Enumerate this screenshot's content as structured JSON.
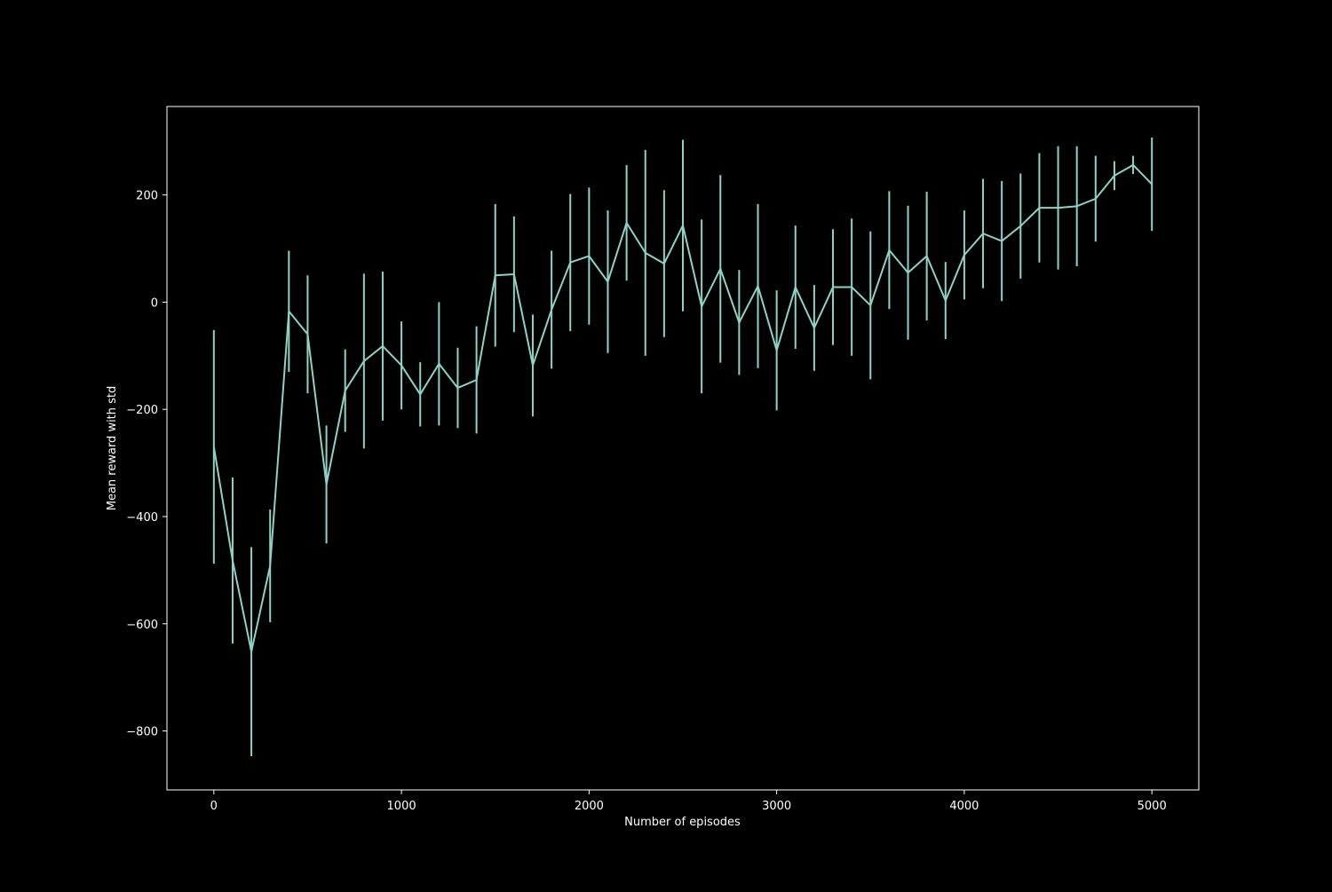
{
  "chart_data": {
    "type": "line",
    "title": "",
    "xlabel": "Number of episodes",
    "ylabel": "Mean reward with std",
    "xlim": [
      -250,
      5250
    ],
    "ylim": [
      -910,
      365
    ],
    "xticks": [
      0,
      1000,
      2000,
      3000,
      4000,
      5000
    ],
    "yticks": [
      -800,
      -600,
      -400,
      -200,
      0,
      200
    ],
    "xtick_labels": [
      "0",
      "1000",
      "2000",
      "3000",
      "4000",
      "5000"
    ],
    "ytick_labels": [
      "−800",
      "−600",
      "−400",
      "−200",
      "0",
      "200"
    ],
    "grid": false,
    "legend": "none",
    "background": "#000000",
    "line_color": "#8dd3c7",
    "axis_color": "#ffffff",
    "x": [
      0,
      100,
      200,
      300,
      400,
      500,
      600,
      700,
      800,
      900,
      1000,
      1100,
      1200,
      1300,
      1400,
      1500,
      1600,
      1700,
      1800,
      1900,
      2000,
      2100,
      2200,
      2300,
      2400,
      2500,
      2600,
      2700,
      2800,
      2900,
      3000,
      3100,
      3200,
      3300,
      3400,
      3500,
      3600,
      3700,
      3800,
      3900,
      4000,
      4100,
      4200,
      4300,
      4400,
      4500,
      4600,
      4700,
      4800,
      4900,
      5000
    ],
    "series": [
      {
        "y": [
          -270,
          -482,
          -652,
          -492,
          -17,
          -60,
          -340,
          -165,
          -110,
          -82,
          -118,
          -172,
          -115,
          -160,
          -145,
          50,
          52,
          -118,
          -14,
          74,
          86,
          38,
          148,
          92,
          72,
          143,
          -8,
          62,
          -38,
          30,
          -90,
          28,
          -48,
          28,
          28,
          -6,
          97,
          55,
          86,
          3,
          88,
          128,
          114,
          142,
          176,
          176,
          179,
          193,
          236,
          256,
          220
        ],
        "error": [
          218,
          155,
          195,
          105,
          113,
          110,
          110,
          77,
          163,
          139,
          82,
          60,
          115,
          75,
          100,
          133,
          108,
          95,
          110,
          128,
          128,
          133,
          108,
          192,
          137,
          160,
          162,
          175,
          98,
          153,
          112,
          115,
          80,
          108,
          128,
          138,
          110,
          125,
          120,
          72,
          83,
          102,
          112,
          98,
          102,
          115,
          112,
          80,
          27,
          17,
          87
        ]
      }
    ]
  }
}
